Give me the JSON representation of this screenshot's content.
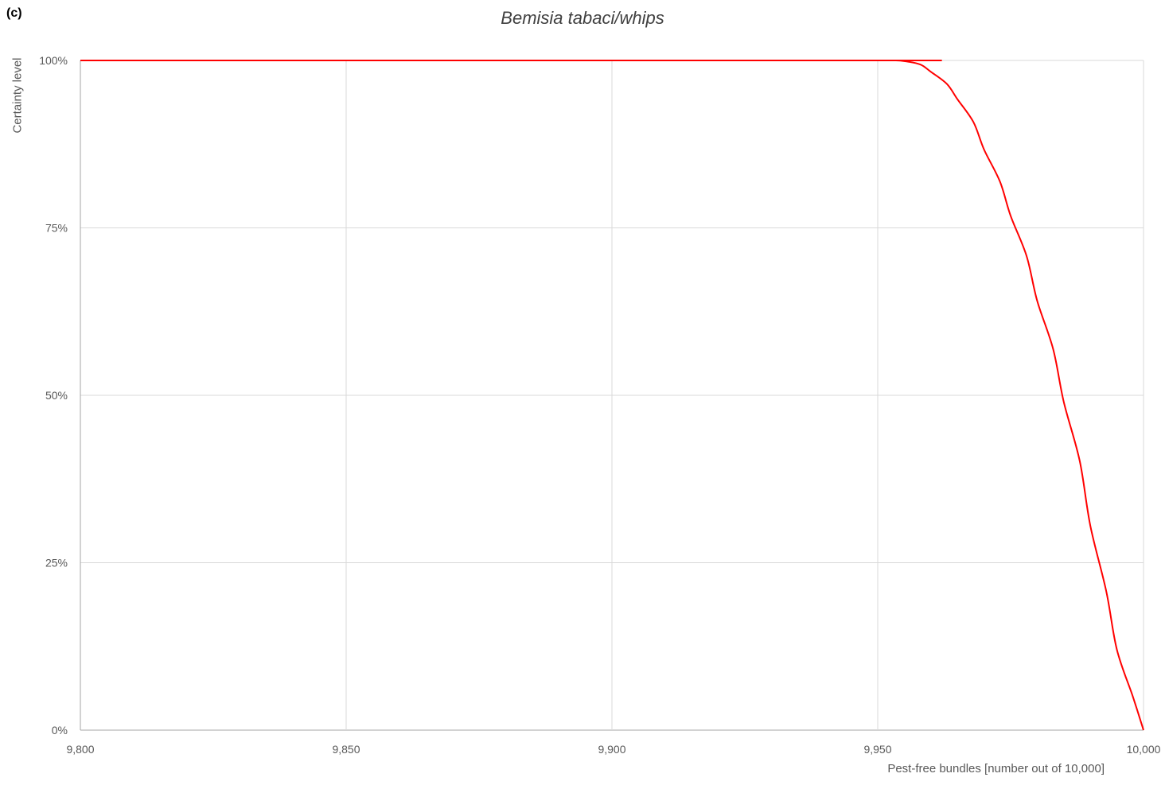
{
  "panel_label": "(c)",
  "chart_data": {
    "type": "line",
    "title": "Bemisia tabaci/whips",
    "xlabel": "Pest-free bundles [number out of 10,000]",
    "ylabel": "Certainty level",
    "xlim": [
      9800,
      10000
    ],
    "ylim": [
      0,
      100
    ],
    "x_ticks": [
      {
        "value": 9800,
        "label": "9,800"
      },
      {
        "value": 9850,
        "label": "9,850"
      },
      {
        "value": 9900,
        "label": "9,900"
      },
      {
        "value": 9950,
        "label": "9,950"
      },
      {
        "value": 10000,
        "label": "10,000"
      }
    ],
    "y_ticks": [
      {
        "value": 0,
        "label": "0%"
      },
      {
        "value": 25,
        "label": "25%"
      },
      {
        "value": 50,
        "label": "50%"
      },
      {
        "value": 75,
        "label": "75%"
      },
      {
        "value": 100,
        "label": "100%"
      }
    ],
    "grid": true,
    "series": [
      {
        "color": "#ff0000",
        "x": [
          9800,
          9950,
          9953,
          9955,
          9958,
          9960,
          9963,
          9965,
          9968,
          9970,
          9973,
          9975,
          9978,
          9980,
          9983,
          9985,
          9988,
          9990,
          9993,
          9995,
          9998,
          10000
        ],
        "y": [
          100,
          100,
          100,
          99.9,
          99.4,
          98.3,
          96.5,
          94.2,
          90.8,
          86.7,
          81.9,
          76.8,
          70.8,
          64.1,
          56.9,
          49.0,
          40.2,
          30.5,
          20.7,
          12.0,
          5.0,
          0
        ]
      }
    ]
  }
}
